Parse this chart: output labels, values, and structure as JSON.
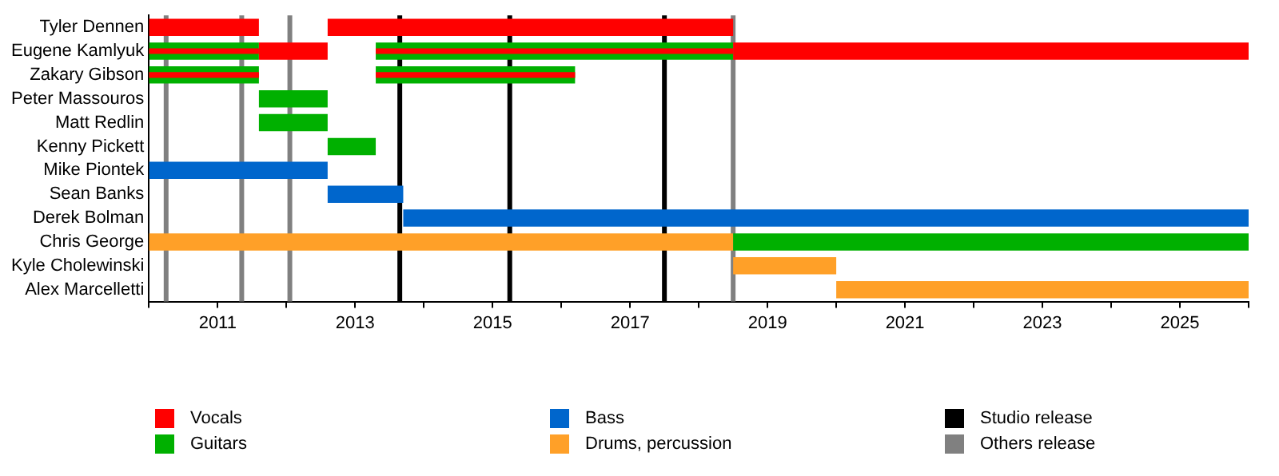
{
  "chart_data": {
    "type": "bar",
    "orientation": "horizontal",
    "categories": [
      "Tyler Dennen",
      "Eugene Kamlyuk",
      "Zakary Gibson",
      "Peter Massouros",
      "Matt Redlin",
      "Kenny Pickett",
      "Mike Piontek",
      "Sean Banks",
      "Derek Bolman",
      "Chris George",
      "Kyle Cholewinski",
      "Alex Marcelletti"
    ],
    "series": [
      {
        "name": "Vocals",
        "color": "#ff0000",
        "base": [
          2010,
          2010,
          2010,
          null,
          null,
          null,
          null,
          null,
          null,
          null,
          null,
          null
        ],
        "values": [
          1.6,
          1.6,
          1.6,
          null,
          null,
          null,
          null,
          null,
          null,
          null,
          null,
          null
        ]
      },
      {
        "color": "#ff0000",
        "base": [
          2012.6,
          2011.6,
          2013.3,
          null,
          null,
          null,
          null,
          null,
          null,
          null,
          null,
          null
        ],
        "values": [
          5.9,
          1.0,
          2.9,
          null,
          null,
          null,
          null,
          null,
          null,
          null,
          null,
          null
        ]
      },
      {
        "color": "#ff0000",
        "base": [
          null,
          2013.3,
          null,
          null,
          null,
          null,
          null,
          null,
          null,
          null,
          null,
          null
        ],
        "values": [
          null,
          5.2,
          null,
          null,
          null,
          null,
          null,
          null,
          null,
          null,
          null,
          null
        ]
      },
      {
        "color": "#ff0000",
        "base": [
          null,
          2018.5,
          null,
          null,
          null,
          null,
          null,
          null,
          null,
          null,
          null,
          null
        ],
        "values": [
          null,
          7.5,
          null,
          null,
          null,
          null,
          null,
          null,
          null,
          null,
          null,
          null
        ]
      },
      {
        "name": "Guitars",
        "color": "#00b000",
        "base": [
          null,
          2010,
          2010,
          2011.6,
          2011.6,
          2012.6,
          null,
          null,
          null,
          2018.5,
          null,
          null
        ],
        "values": [
          null,
          1.6,
          1.6,
          1.0,
          1.0,
          0.7,
          null,
          null,
          null,
          7.5,
          null,
          null
        ]
      },
      {
        "color": "#00b000",
        "base": [
          null,
          2013.3,
          2013.3,
          null,
          null,
          null,
          null,
          null,
          null,
          null,
          null,
          null
        ],
        "values": [
          null,
          5.2,
          2.9,
          null,
          null,
          null,
          null,
          null,
          null,
          null,
          null,
          null
        ]
      },
      {
        "name": "Bass",
        "color": "#0066cc",
        "base": [
          null,
          null,
          null,
          null,
          null,
          null,
          2010,
          2012.6,
          2013.7,
          null,
          null,
          null
        ],
        "values": [
          null,
          null,
          null,
          null,
          null,
          null,
          2.6,
          1.1,
          12.3,
          null,
          null,
          null
        ]
      },
      {
        "name": "Drums, percussion",
        "color": "#ffa028",
        "base": [
          null,
          null,
          null,
          null,
          null,
          null,
          null,
          null,
          null,
          2010,
          2018.5,
          2020
        ],
        "values": [
          null,
          null,
          null,
          null,
          null,
          null,
          null,
          null,
          null,
          8.5,
          1.5,
          6
        ]
      }
    ],
    "xlim": [
      2010,
      2026
    ],
    "xticks": [
      {
        "value": 2010,
        "label": null
      },
      2011,
      {
        "value": 2012,
        "label": null
      },
      2013,
      {
        "value": 2014,
        "label": null
      },
      2015,
      {
        "value": 2016,
        "label": null
      },
      2017,
      {
        "value": 2018,
        "label": null
      },
      2019,
      {
        "value": 2020,
        "label": null
      },
      2021,
      {
        "value": 2022,
        "label": null
      },
      2023,
      {
        "value": 2024,
        "label": null
      },
      2025,
      {
        "value": 2026,
        "label": null
      }
    ],
    "ref_lines": [
      {
        "axis": "x",
        "value": 2013.65,
        "label": "Studio release",
        "color": "#000000"
      },
      {
        "axis": "x",
        "value": 2010.25,
        "label": "Others release",
        "color": "#808080"
      },
      {
        "axis": "x",
        "value": 2011.35,
        "color": "#808080"
      },
      {
        "axis": "x",
        "value": 2012.05,
        "color": "#808080"
      },
      {
        "axis": "x",
        "value": 2015.25,
        "color": "#000000"
      },
      {
        "axis": "x",
        "value": 2017.5,
        "color": "#000000"
      },
      {
        "axis": "x",
        "value": 2018.5,
        "color": "#808080"
      }
    ],
    "grid": false,
    "legend": "bottom"
  }
}
